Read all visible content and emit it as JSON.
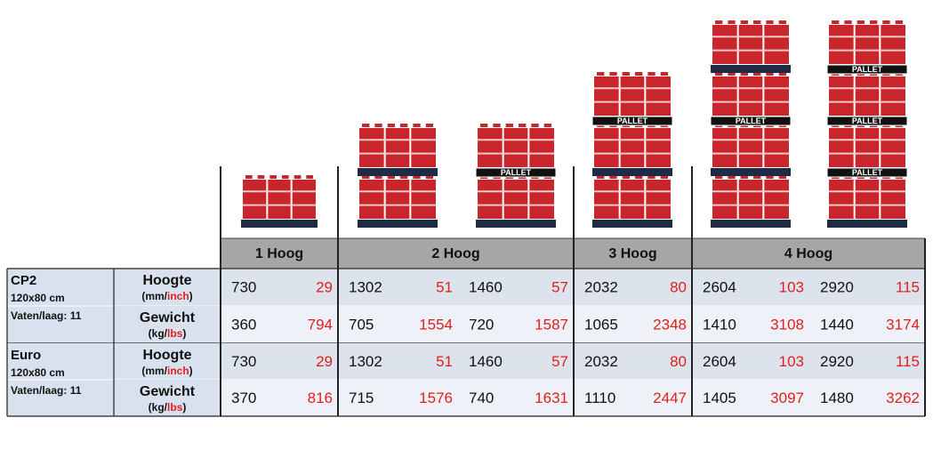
{
  "pallet_label": "PALLET",
  "table": {
    "groups": [
      "1 Hoog",
      "2 Hoog",
      "3 Hoog",
      "4 Hoog"
    ],
    "products": [
      {
        "name": "CP2",
        "size": "120x80 cm",
        "layer": "Vaten/laag: 11",
        "rows": [
          {
            "label": "Hoogte",
            "unit": [
              "(mm/",
              "inch",
              ")"
            ],
            "values": [
              730,
              29,
              1302,
              51,
              1460,
              57,
              2032,
              80,
              2604,
              103,
              2920,
              115
            ]
          },
          {
            "label": "Gewicht",
            "unit": [
              "(kg/",
              "lbs",
              ")"
            ],
            "values": [
              360,
              794,
              705,
              1554,
              720,
              1587,
              1065,
              2348,
              1410,
              3108,
              1440,
              3174
            ]
          }
        ]
      },
      {
        "name": "Euro",
        "size": "120x80 cm",
        "layer": "Vaten/laag: 11",
        "rows": [
          {
            "label": "Hoogte",
            "unit": [
              "(mm/",
              "inch",
              ")"
            ],
            "values": [
              730,
              29,
              1302,
              51,
              1460,
              57,
              2032,
              80,
              2604,
              103,
              2920,
              115
            ]
          },
          {
            "label": "Gewicht",
            "unit": [
              "(kg/",
              "lbs",
              ")"
            ],
            "values": [
              370,
              816,
              715,
              1576,
              740,
              1631,
              1110,
              2447,
              1405,
              3097,
              1480,
              3262
            ]
          }
        ]
      }
    ]
  }
}
